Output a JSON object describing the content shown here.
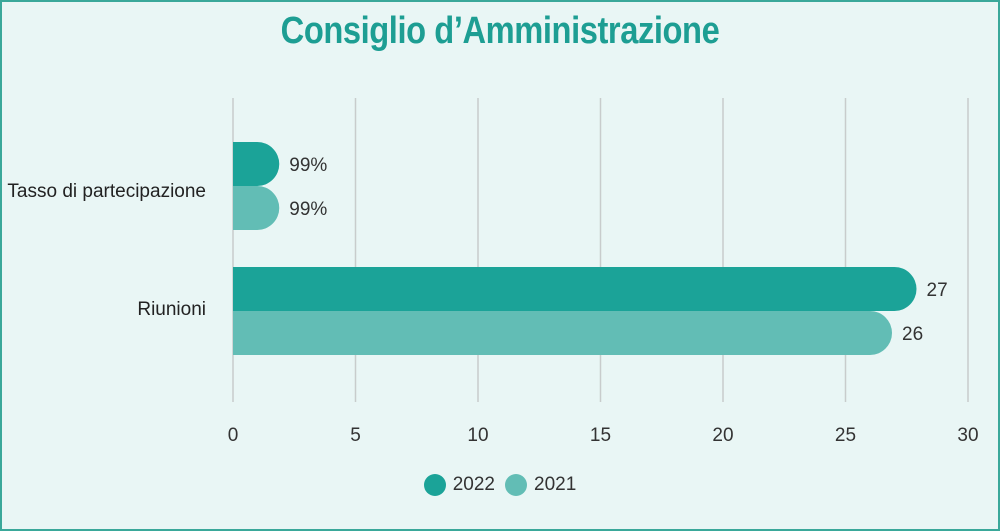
{
  "chart_data": {
    "type": "bar",
    "orientation": "horizontal",
    "title": "Consiglio d’Amministrazione",
    "categories": [
      "Tasso di partecipazione",
      "Riunioni"
    ],
    "series": [
      {
        "name": "2022",
        "color": "#1ba398",
        "values": [
          0.99,
          27
        ],
        "labels": [
          "99%",
          "27"
        ]
      },
      {
        "name": "2021",
        "color": "#62bdb5",
        "values": [
          0.99,
          26
        ],
        "labels": [
          "99%",
          "26"
        ]
      }
    ],
    "xlim": [
      0,
      30
    ],
    "xticks": [
      "0",
      "5",
      "10",
      "15",
      "20",
      "25",
      "30"
    ],
    "grid": true,
    "legend_position": "bottom"
  }
}
